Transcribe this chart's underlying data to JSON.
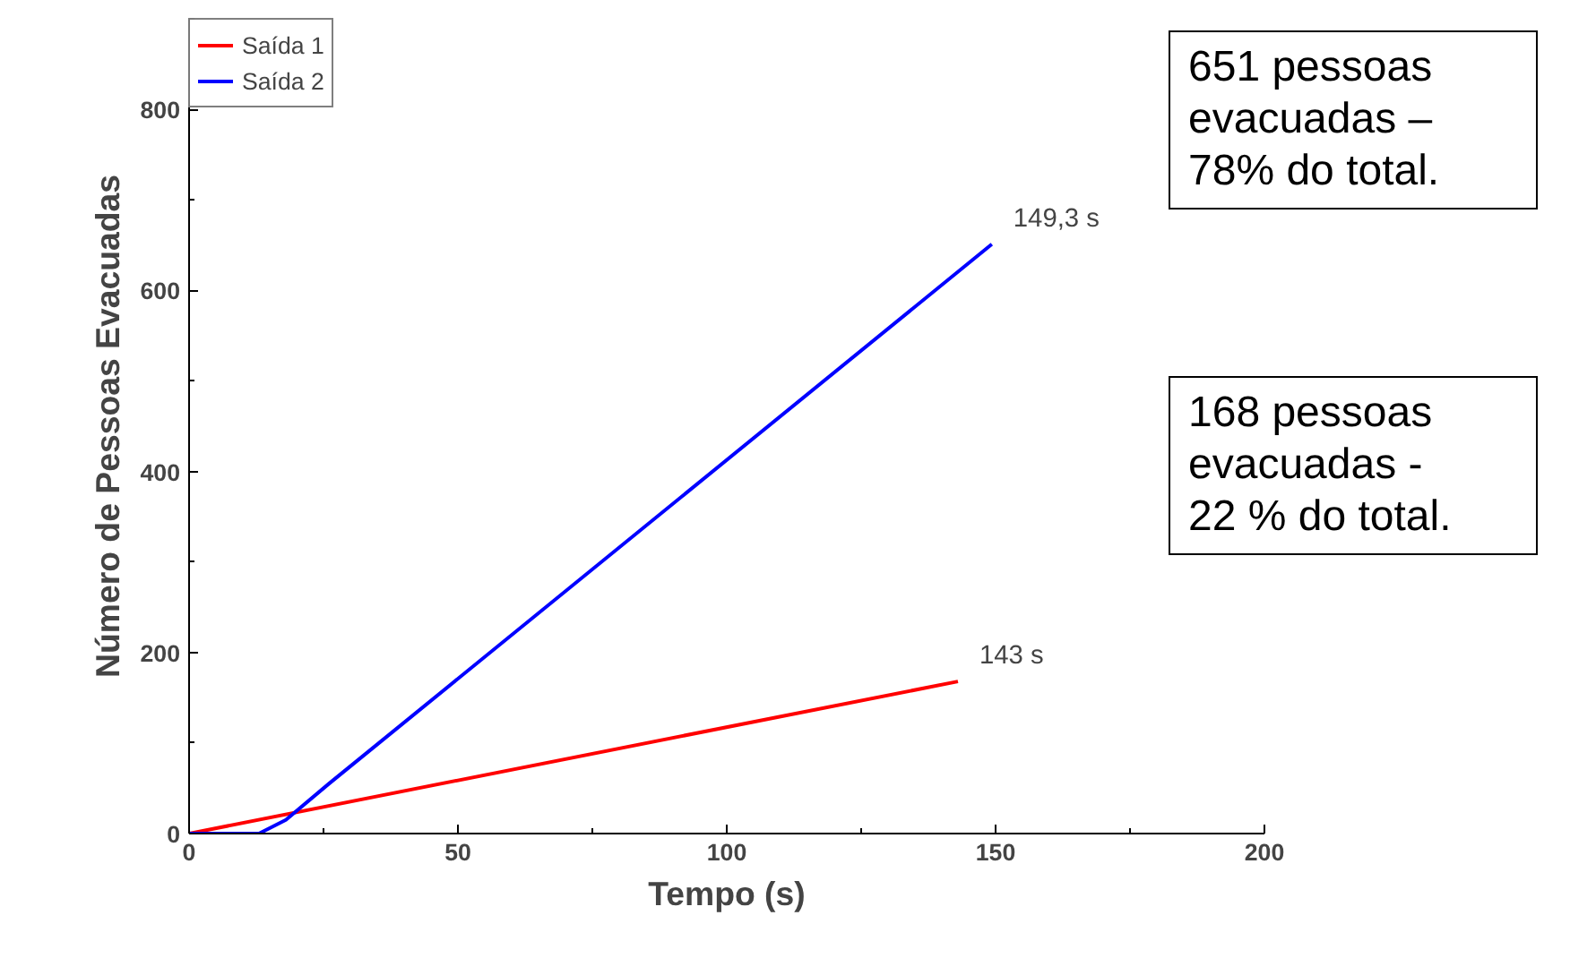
{
  "chart_data": {
    "type": "line",
    "xlabel": "Tempo (s)",
    "ylabel": "Número de Pessoas Evacuadas",
    "xlim": [
      0,
      200
    ],
    "ylim": [
      0,
      900
    ],
    "xticks": [
      0,
      50,
      100,
      150,
      200
    ],
    "yticks": [
      0,
      200,
      400,
      600,
      800
    ],
    "series": [
      {
        "name": "Saída 1",
        "color": "#ff0000",
        "x": [
          0,
          143
        ],
        "values": [
          0,
          168
        ]
      },
      {
        "name": "Saída 2",
        "color": "#0000ff",
        "x": [
          0,
          13,
          18,
          26,
          149.3
        ],
        "values": [
          0,
          0,
          15,
          55,
          651
        ]
      }
    ],
    "annotations": [
      {
        "text": "149,3 s",
        "x": 149.3,
        "y": 651
      },
      {
        "text": "143 s",
        "x": 143,
        "y": 168
      },
      "651 pessoas\nevacuadas –\n78% do total.",
      "168 pessoas\nevacuadas -\n22 % do total."
    ],
    "legend": "top left",
    "grid": false,
    "marker": "none",
    "line_style": "solid"
  }
}
